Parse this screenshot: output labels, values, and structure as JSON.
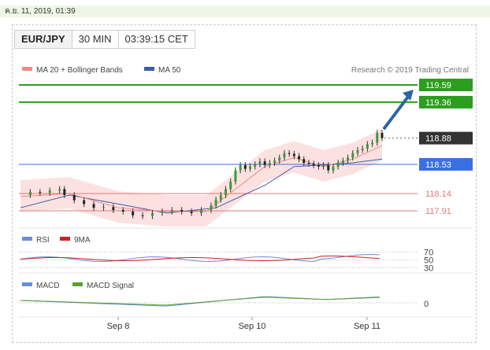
{
  "timestamp": "ค.ย. 11, 2019, 01:39",
  "header": {
    "symbol": "EUR/JPY",
    "interval": "30 MIN",
    "time": "03:39:15 CET"
  },
  "legend": {
    "ma20_bb": "MA 20 + Bollinger Bands",
    "ma50": "MA 50",
    "source": "Research © 2019 Trading Central"
  },
  "colors": {
    "resistance": "#2c9e1e",
    "current": "#333333",
    "support_band": "#3b6fe0",
    "support_line": "#e07a7a",
    "ma20": "#f08a8a",
    "ma50": "#3a5da8",
    "bollinger_fill": "#fbdada",
    "rsi": "#6a8ed8",
    "rsi_ma": "#cc2222",
    "macd": "#6a8ed8",
    "macd_signal": "#5aa02c",
    "arrow": "#2d64a8"
  },
  "chart_data": [
    {
      "type": "line",
      "name": "EUR/JPY price",
      "x_axis": [
        "Sep 8",
        "Sep 10",
        "Sep 11"
      ],
      "ylim": [
        117.6,
        119.7
      ],
      "levels": [
        {
          "value": 119.59,
          "label": "119.59",
          "kind": "resistance"
        },
        {
          "value": 119.36,
          "label": "119.36",
          "kind": "resistance"
        },
        {
          "value": 118.88,
          "label": "118.88",
          "kind": "current"
        },
        {
          "value": 118.53,
          "label": "118.53",
          "kind": "support_band"
        },
        {
          "value": 118.14,
          "label": "118.14",
          "kind": "support_line"
        },
        {
          "value": 117.91,
          "label": "117.91",
          "kind": "support_line"
        }
      ],
      "price_path": [
        [
          0,
          118.12
        ],
        [
          4,
          118.16
        ],
        [
          8,
          118.15
        ],
        [
          12,
          118.18
        ],
        [
          16,
          118.2
        ],
        [
          18,
          118.12
        ],
        [
          22,
          118.05
        ],
        [
          26,
          118.0
        ],
        [
          30,
          117.95
        ],
        [
          34,
          117.96
        ],
        [
          38,
          117.92
        ],
        [
          42,
          117.9
        ],
        [
          46,
          117.85
        ],
        [
          50,
          117.84
        ],
        [
          54,
          117.88
        ],
        [
          58,
          117.9
        ],
        [
          62,
          117.92
        ],
        [
          66,
          117.9
        ],
        [
          70,
          117.88
        ],
        [
          74,
          117.92
        ],
        [
          78,
          117.98
        ],
        [
          80,
          118.06
        ],
        [
          82,
          118.12
        ],
        [
          84,
          118.2
        ],
        [
          86,
          118.3
        ],
        [
          88,
          118.45
        ],
        [
          90,
          118.52
        ],
        [
          92,
          118.47
        ],
        [
          94,
          118.5
        ],
        [
          96,
          118.53
        ],
        [
          98,
          118.57
        ],
        [
          100,
          118.52
        ],
        [
          102,
          118.55
        ],
        [
          104,
          118.58
        ],
        [
          106,
          118.62
        ],
        [
          108,
          118.68
        ],
        [
          110,
          118.67
        ],
        [
          112,
          118.64
        ],
        [
          114,
          118.6
        ],
        [
          116,
          118.55
        ],
        [
          118,
          118.54
        ],
        [
          120,
          118.52
        ],
        [
          122,
          118.5
        ],
        [
          124,
          118.52
        ],
        [
          126,
          118.45
        ],
        [
          128,
          118.5
        ],
        [
          130,
          118.55
        ],
        [
          132,
          118.58
        ],
        [
          134,
          118.62
        ],
        [
          136,
          118.68
        ],
        [
          138,
          118.72
        ],
        [
          140,
          118.74
        ],
        [
          142,
          118.8
        ],
        [
          144,
          118.82
        ],
        [
          146,
          118.95
        ],
        [
          148,
          118.88
        ]
      ],
      "ma20": [
        [
          0,
          118.1
        ],
        [
          20,
          118.14
        ],
        [
          40,
          117.95
        ],
        [
          60,
          117.9
        ],
        [
          76,
          117.9
        ],
        [
          88,
          118.2
        ],
        [
          100,
          118.5
        ],
        [
          112,
          118.62
        ],
        [
          124,
          118.5
        ],
        [
          136,
          118.6
        ],
        [
          148,
          118.78
        ]
      ],
      "ma50": [
        [
          0,
          117.95
        ],
        [
          20,
          118.12
        ],
        [
          40,
          118.0
        ],
        [
          60,
          117.88
        ],
        [
          80,
          117.95
        ],
        [
          100,
          118.25
        ],
        [
          112,
          118.5
        ],
        [
          124,
          118.52
        ],
        [
          136,
          118.55
        ],
        [
          148,
          118.6
        ]
      ],
      "projection": {
        "from": 119.0,
        "to": 119.59
      }
    },
    {
      "type": "line",
      "name": "RSI",
      "series": [
        {
          "name": "RSI"
        },
        {
          "name": "9MA"
        }
      ],
      "levels": [
        70,
        50,
        30
      ],
      "ylim": [
        25,
        75
      ]
    },
    {
      "type": "line",
      "name": "MACD",
      "series": [
        {
          "name": "MACD"
        },
        {
          "name": "MACD Signal"
        }
      ],
      "levels": [
        0
      ]
    }
  ]
}
